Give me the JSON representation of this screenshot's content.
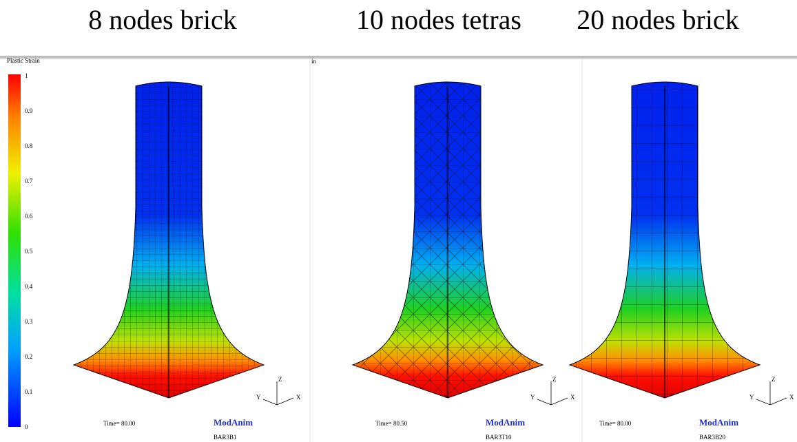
{
  "titles": [
    "8 nodes brick",
    "10 nodes tetras",
    "20 nodes brick"
  ],
  "colorbar": {
    "label": "Plastic Strain",
    "ticks": [
      1,
      0.9,
      0.8,
      0.7,
      0.6,
      0.5,
      0.4,
      0.3,
      0.2,
      0.1,
      0
    ]
  },
  "stray_text": "in",
  "panels": [
    {
      "time": "Time= 80.00",
      "brand": "ModAnim",
      "model": "BAR3B1",
      "axes": [
        "Z",
        "Y",
        "X"
      ]
    },
    {
      "time": "Time= 80.50",
      "brand": "ModAnim",
      "model": "BAR3T10",
      "axes": [
        "Z",
        "Y",
        "X"
      ]
    },
    {
      "time": "Time= 80.00",
      "brand": "ModAnim",
      "model": "BAR3B20",
      "axes": [
        "Z",
        "Y",
        "X"
      ]
    }
  ]
}
